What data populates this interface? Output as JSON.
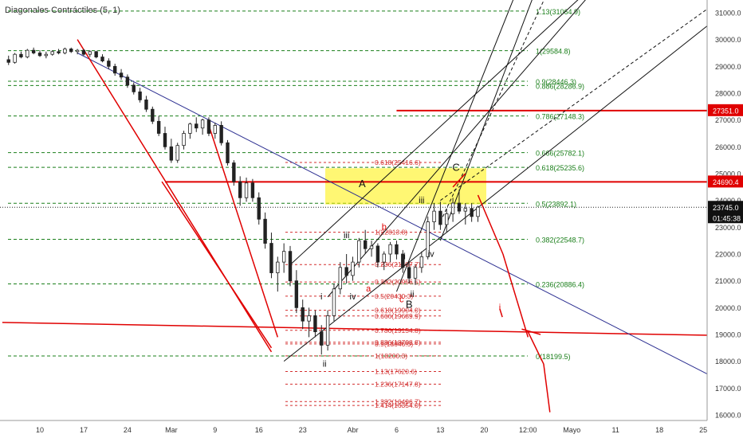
{
  "title": "Diagonales Contráctiles (5, 1)",
  "colors": {
    "candle_up": "#ffffff",
    "candle_down": "#222222",
    "fib_green": "#1a7f1a",
    "fib_red": "#d32f2f",
    "trend_blue": "#2e3192",
    "red_line": "#e00000",
    "channel_black": "#111111",
    "highlight": "#fff000",
    "label_red": "#e00000",
    "label_black": "#111111"
  },
  "chart_data": {
    "type": "candlestick",
    "ylim": [
      15900,
      31700
    ],
    "y_ticks": [
      "16000.0",
      "17000.0",
      "18000.0",
      "19000.0",
      "20000.0",
      "21000.0",
      "22000.0",
      "23000.0",
      "24000.0",
      "25000.0",
      "26000.0",
      "27000.0",
      "28000.0",
      "29000.0",
      "30000.0",
      "31000.0"
    ],
    "y_tick_values": [
      16000,
      17000,
      18000,
      19000,
      20000,
      21000,
      22000,
      23000,
      24000,
      25000,
      26000,
      27000,
      28000,
      29000,
      30000,
      31000
    ],
    "x_tick_labels": [
      "10",
      "17",
      "24",
      "Mar",
      "9",
      "16",
      "23",
      "Abr",
      "6",
      "13",
      "20",
      "12:00",
      "Mayo",
      "11",
      "18",
      "25"
    ],
    "x_tick_index": [
      0,
      7,
      14,
      21,
      28,
      35,
      42,
      50,
      57,
      64,
      71,
      78,
      85,
      92,
      99,
      106
    ],
    "index_range": [
      -5,
      112
    ],
    "price_label": "23745.0",
    "countdown": "01:45:38",
    "red_price_labels": [
      "27351.0",
      "24690.4"
    ],
    "green_fibs": [
      {
        "label": "1.13(31064.9)",
        "value": 31064.9
      },
      {
        "label": "1(29584.8)",
        "value": 29584.8
      },
      {
        "label": "0.9(28446.3)",
        "value": 28446.3
      },
      {
        "label": "0.886(28286.9)",
        "value": 28286.9
      },
      {
        "label": "0.786(27148.3)",
        "value": 27148.3
      },
      {
        "label": "0.666(25782.1)",
        "value": 25782.1
      },
      {
        "label": "0.618(25235.6)",
        "value": 25235.6
      },
      {
        "label": "0.5(23892.1)",
        "value": 23892.1
      },
      {
        "label": "0.382(22548.7)",
        "value": 22548.7
      },
      {
        "label": "0.236(20886.4)",
        "value": 20886.4
      },
      {
        "label": "0(18199.5)",
        "value": 18199.5
      }
    ],
    "red_fibs": [
      {
        "label": "0.618(25416.6)",
        "value": 25416.6
      },
      {
        "label": "1(22813.8)",
        "value": 22813.8
      },
      {
        "label": "0.236(21607.7)",
        "value": 21607.7
      },
      {
        "label": "0.382(20956.5)",
        "value": 20956.5
      },
      {
        "label": "0.5(20430.3)",
        "value": 20430.3
      },
      {
        "label": "0.618(19904.0)",
        "value": 19904.0
      },
      {
        "label": "0.666(19689.9)",
        "value": 19689.9
      },
      {
        "label": "0.786(19154.8)",
        "value": 19154.8
      },
      {
        "label": "0.886(18708.8)",
        "value": 18708.8
      },
      {
        "label": "0.9(18646.5)",
        "value": 18646.5
      },
      {
        "label": "1(18200.3)",
        "value": 18200.3
      },
      {
        "label": "1.13(17620.6)",
        "value": 17620.6
      },
      {
        "label": "1.236(17147.8)",
        "value": 17147.8
      },
      {
        "label": "1.382(16496.7)",
        "value": 16496.7
      },
      {
        "label": "1.414(16354.0)",
        "value": 16354.0
      }
    ],
    "wave_labels": [
      {
        "text": "A",
        "color": "black",
        "i": 51.5,
        "v": 24500
      },
      {
        "text": "B",
        "color": "black",
        "i": 59,
        "v": 20000
      },
      {
        "text": "C",
        "color": "black",
        "i": 66.5,
        "v": 25100
      },
      {
        "text": "i",
        "color": "black",
        "i": 45,
        "v": 20300
      },
      {
        "text": "ii",
        "color": "black",
        "i": 45.5,
        "v": 17800
      },
      {
        "text": "iii",
        "color": "black",
        "i": 49,
        "v": 22600
      },
      {
        "text": "iv",
        "color": "black",
        "i": 50,
        "v": 20300
      },
      {
        "text": "i",
        "color": "black",
        "i": 58.3,
        "v": 21800
      },
      {
        "text": "ii",
        "color": "black",
        "i": 59.5,
        "v": 20400
      },
      {
        "text": "iii",
        "color": "black",
        "i": 61,
        "v": 23900
      },
      {
        "text": "iv",
        "color": "black",
        "i": 62.5,
        "v": 21900
      },
      {
        "text": "a",
        "color": "red",
        "i": 52.5,
        "v": 20600
      },
      {
        "text": "b",
        "color": "red",
        "i": 55,
        "v": 22900
      },
      {
        "text": "c",
        "color": "red",
        "i": 57.8,
        "v": 20200
      },
      {
        "text": "i",
        "color": "red",
        "i": 73.5,
        "v": 19900
      }
    ],
    "candles": [
      [
        29250,
        29400,
        29050,
        29150
      ],
      [
        29150,
        29500,
        29100,
        29450
      ],
      [
        29450,
        29550,
        29300,
        29350
      ],
      [
        29350,
        29650,
        29300,
        29600
      ],
      [
        29600,
        29700,
        29450,
        29500
      ],
      [
        29500,
        29600,
        29350,
        29400
      ],
      [
        29400,
        29550,
        29300,
        29450
      ],
      [
        29450,
        29600,
        29400,
        29550
      ],
      [
        29550,
        29650,
        29450,
        29500
      ],
      [
        29500,
        29700,
        29450,
        29650
      ],
      [
        29650,
        29700,
        29500,
        29550
      ],
      [
        29550,
        29650,
        29450,
        29600
      ],
      [
        29600,
        29650,
        29400,
        29450
      ],
      [
        29450,
        29600,
        29350,
        29550
      ],
      [
        29550,
        29580,
        29300,
        29350
      ],
      [
        29350,
        29450,
        29150,
        29200
      ],
      [
        29200,
        29300,
        28900,
        29000
      ],
      [
        29000,
        29100,
        28650,
        28750
      ],
      [
        28750,
        28900,
        28500,
        28600
      ],
      [
        28600,
        28700,
        28200,
        28300
      ],
      [
        28300,
        28400,
        27950,
        28050
      ],
      [
        28050,
        28200,
        27650,
        27750
      ],
      [
        27750,
        27900,
        27300,
        27400
      ],
      [
        27400,
        27500,
        26850,
        26950
      ],
      [
        26950,
        27150,
        26400,
        26500
      ],
      [
        26500,
        26750,
        25900,
        26000
      ],
      [
        26000,
        26300,
        25400,
        25500
      ],
      [
        25500,
        26150,
        25400,
        26050
      ],
      [
        26050,
        26600,
        25900,
        26500
      ],
      [
        26500,
        26900,
        26300,
        26850
      ],
      [
        26850,
        27100,
        26550,
        26700
      ],
      [
        26700,
        27050,
        26450,
        27000
      ],
      [
        27000,
        27100,
        26400,
        26500
      ],
      [
        26500,
        26900,
        26300,
        26800
      ],
      [
        26800,
        26950,
        26050,
        26150
      ],
      [
        26150,
        26250,
        25300,
        25400
      ],
      [
        25400,
        25500,
        24550,
        24700
      ],
      [
        24700,
        24900,
        23800,
        24100
      ],
      [
        24100,
        24850,
        23950,
        24650
      ],
      [
        24650,
        24800,
        23950,
        24100
      ],
      [
        24100,
        24300,
        23100,
        23300
      ],
      [
        23300,
        23550,
        22200,
        22400
      ],
      [
        22400,
        22800,
        21100,
        21300
      ],
      [
        21300,
        21900,
        20600,
        21700
      ],
      [
        21700,
        22400,
        21300,
        22100
      ],
      [
        22100,
        22300,
        20800,
        21000
      ],
      [
        21000,
        21400,
        19800,
        20000
      ],
      [
        20000,
        20300,
        19200,
        19500
      ],
      [
        19500,
        20000,
        18900,
        19700
      ],
      [
        19700,
        19900,
        18900,
        19100
      ],
      [
        19100,
        19350,
        18250,
        18600
      ],
      [
        18600,
        19900,
        18400,
        19700
      ],
      [
        19700,
        20900,
        19500,
        20700
      ],
      [
        20700,
        21700,
        20500,
        21500
      ],
      [
        21500,
        22000,
        20900,
        21200
      ],
      [
        21200,
        21900,
        21000,
        21700
      ],
      [
        21700,
        22600,
        21500,
        22500
      ],
      [
        22500,
        22900,
        22000,
        22200
      ],
      [
        22200,
        22500,
        21900,
        22300
      ],
      [
        22300,
        22400,
        21500,
        21700
      ],
      [
        21700,
        22100,
        21400,
        22000
      ],
      [
        22000,
        22450,
        21700,
        22350
      ],
      [
        22350,
        22500,
        21800,
        22000
      ],
      [
        22000,
        22150,
        21300,
        21500
      ],
      [
        21500,
        21700,
        20900,
        21100
      ],
      [
        21100,
        21600,
        20850,
        21500
      ],
      [
        21500,
        22100,
        21300,
        21900
      ],
      [
        21900,
        23400,
        21800,
        23200
      ],
      [
        23200,
        23900,
        22900,
        23600
      ],
      [
        23600,
        23950,
        22900,
        23100
      ],
      [
        23100,
        23700,
        22800,
        23500
      ],
      [
        23500,
        24100,
        23200,
        23900
      ],
      [
        23900,
        24400,
        23500,
        23600
      ],
      [
        23600,
        23900,
        23100,
        23700
      ],
      [
        23700,
        23900,
        23200,
        23400
      ],
      [
        23400,
        23800,
        23200,
        23750
      ]
    ],
    "ohlc_note": "open, high, low, close per daily candle"
  }
}
